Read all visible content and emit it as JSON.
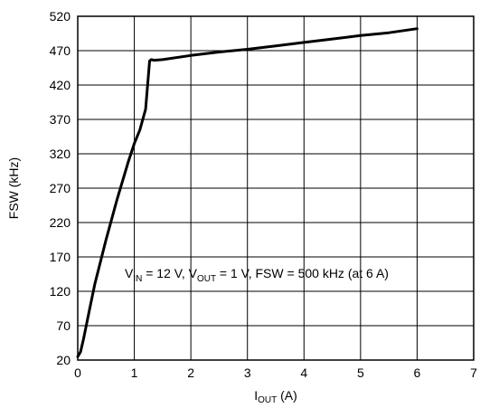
{
  "chart_data": {
    "type": "line",
    "xlim": [
      0,
      7
    ],
    "ylim": [
      20,
      520
    ],
    "x_ticks": [
      "0",
      "1",
      "2",
      "3",
      "4",
      "5",
      "6",
      "7"
    ],
    "y_ticks": [
      "20",
      "70",
      "120",
      "170",
      "220",
      "270",
      "320",
      "370",
      "420",
      "470",
      "520"
    ],
    "grid": true,
    "xlabel": {
      "main": "I",
      "sub": "OUT",
      "unit": " (A)"
    },
    "ylabel": "FSW (kHz)",
    "annotation": {
      "v1": "V",
      "v1_sub": "IN",
      "t1": " = 12 V, V",
      "v2_sub": "OUT",
      "t2": " = 1 V, FSW = 500 kHz (at 6 A)"
    },
    "series": [
      {
        "color": "#000000",
        "x": [
          0,
          0.05,
          0.1,
          0.2,
          0.3,
          0.5,
          0.7,
          0.9,
          1.0,
          1.1,
          1.2,
          1.27,
          1.3,
          1.35,
          1.5,
          2.0,
          2.5,
          3.0,
          3.5,
          4.0,
          4.5,
          5.0,
          5.5,
          6.0
        ],
        "y": [
          25,
          32,
          50,
          90,
          130,
          195,
          255,
          310,
          335,
          355,
          385,
          455,
          457,
          456,
          457,
          463,
          468,
          472,
          477,
          482,
          487,
          492,
          496,
          502
        ]
      }
    ]
  }
}
